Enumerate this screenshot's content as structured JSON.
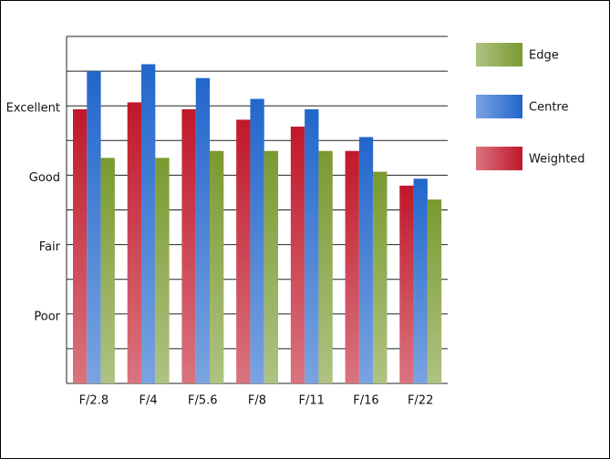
{
  "chart_data": {
    "type": "bar",
    "categories": [
      "F/2.8",
      "F/4",
      "F/5.6",
      "F/8",
      "F/11",
      "F/16",
      "F/22"
    ],
    "series": [
      {
        "name": "Weighted",
        "color": "#c0182a",
        "values": [
          7.9,
          8.1,
          7.9,
          7.6,
          7.4,
          6.7,
          5.7
        ]
      },
      {
        "name": "Centre",
        "color": "#2266cc",
        "values": [
          9.0,
          9.2,
          8.8,
          8.2,
          7.9,
          7.1,
          5.9
        ]
      },
      {
        "name": "Edge",
        "color": "#7a9a30",
        "values": [
          6.5,
          6.5,
          6.7,
          6.7,
          6.7,
          6.1,
          5.3
        ]
      }
    ],
    "ylim": [
      0,
      10
    ],
    "yticks": [
      {
        "value": 2,
        "label": "Poor"
      },
      {
        "value": 4,
        "label": "Fair"
      },
      {
        "value": 6,
        "label": "Good"
      },
      {
        "value": 8,
        "label": "Excellent"
      }
    ],
    "minor_yticks": [
      0,
      1,
      3,
      5,
      7,
      9,
      10
    ],
    "grid": true,
    "legend": "right"
  }
}
